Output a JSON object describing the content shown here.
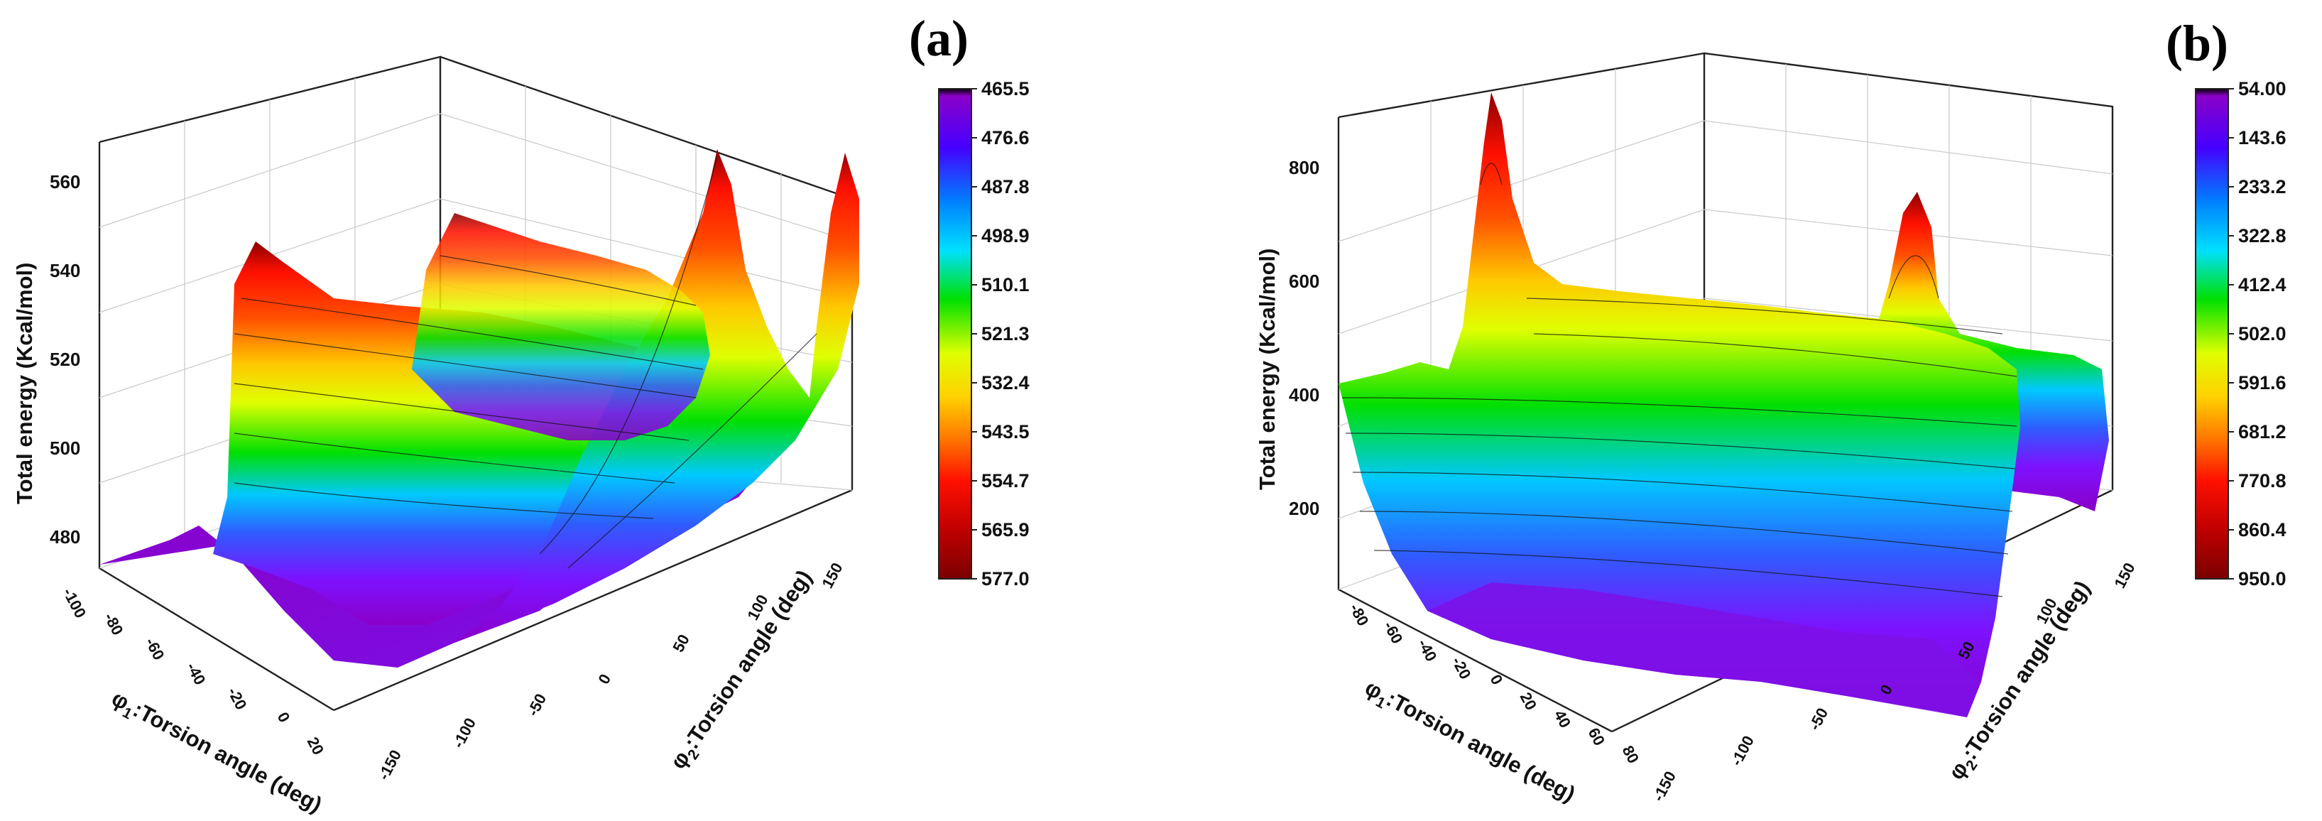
{
  "figure": {
    "panels": [
      "(a)",
      "(b)"
    ]
  },
  "chart_data": [
    {
      "type": "surface",
      "panel_label": "(a)",
      "zlabel": "Total energy (Kcal/mol)",
      "xlabel_prefix": "φ",
      "xlabel_sub": "1",
      "xlabel_rest": ":Torsion angle (deg)",
      "ylabel_prefix": "φ",
      "ylabel_sub": "2",
      "ylabel_rest": ":Torsion angle (deg)",
      "x_ticks": [
        "-100",
        "-80",
        "-60",
        "-40",
        "-20",
        "0",
        "20"
      ],
      "y_ticks": [
        "-150",
        "-100",
        "-50",
        "0",
        "50",
        "100",
        "150"
      ],
      "z_ticks": [
        "480",
        "500",
        "520",
        "540",
        "560"
      ],
      "zlim": [
        465.5,
        577.0
      ],
      "colorbar_ticks": [
        "465.5",
        "476.6",
        "487.8",
        "498.9",
        "510.1",
        "521.3",
        "532.4",
        "543.5",
        "554.7",
        "565.9",
        "577.0"
      ],
      "colorbar_colors": [
        "#000000",
        "#8a00c8",
        "#4500ff",
        "#0080ff",
        "#00e0ff",
        "#00e000",
        "#dfff00",
        "#ffd000",
        "#ff7000",
        "#ff1000",
        "#c00000",
        "#7a0000"
      ],
      "valleys_deg_phi1": [
        -40,
        -5
      ],
      "peak_near": {
        "phi1": -10,
        "phi2": -40,
        "energy": 565
      }
    },
    {
      "type": "surface",
      "panel_label": "(b)",
      "zlabel": "Total energy (Kcal/mol)",
      "xlabel_prefix": "φ",
      "xlabel_sub": "1",
      "xlabel_rest": ":Torsion angle (deg)",
      "ylabel_prefix": "φ",
      "ylabel_sub": "2",
      "ylabel_rest": ":Torsion angle (deg)",
      "x_ticks": [
        "-80",
        "-60",
        "-40",
        "-20",
        "0",
        "20",
        "40",
        "60",
        "80"
      ],
      "y_ticks": [
        "-150",
        "-100",
        "-50",
        "0",
        "50",
        "100",
        "150"
      ],
      "z_ticks": [
        "200",
        "400",
        "600",
        "800"
      ],
      "zlim": [
        54.0,
        950.0
      ],
      "colorbar_ticks": [
        "54.00",
        "143.6",
        "233.2",
        "322.8",
        "412.4",
        "502.0",
        "591.6",
        "681.2",
        "770.8",
        "860.4",
        "950.0"
      ],
      "colorbar_colors": [
        "#000000",
        "#8a00c8",
        "#4500ff",
        "#0080ff",
        "#00e0ff",
        "#00e000",
        "#dfff00",
        "#ffd000",
        "#ff7000",
        "#ff1000",
        "#c00000",
        "#7a0000"
      ],
      "peaks": [
        {
          "phi1": -60,
          "phi2": -150,
          "energy": 920
        },
        {
          "phi1": -10,
          "phi2": 100,
          "energy": 760
        }
      ]
    }
  ]
}
